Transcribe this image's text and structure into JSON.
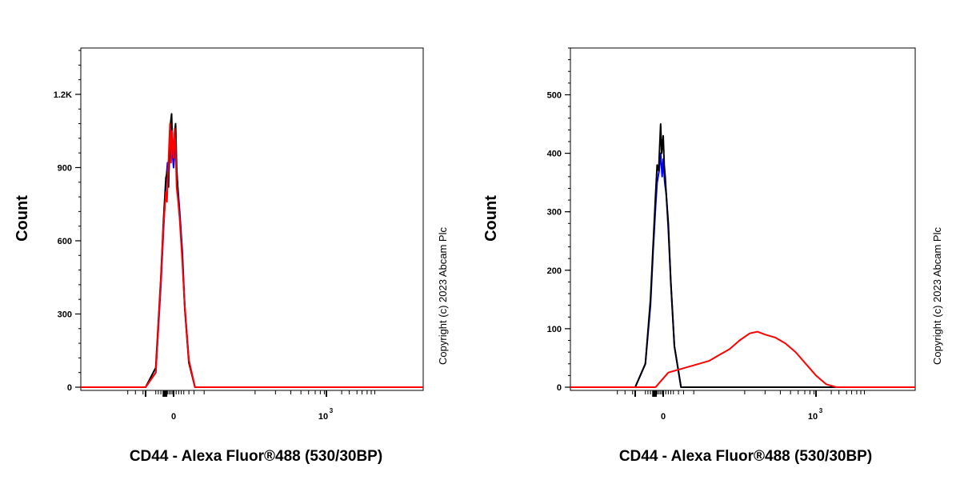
{
  "chart_data": [
    {
      "type": "line",
      "ylabel": "Count",
      "xlabel": "CD44 - Alexa Fluor®488 (530/30BP)",
      "copyright": "Copyright (c) 2023 Abcam Plc",
      "x_tick_labels": [
        "0",
        "10",
        "3"
      ],
      "y_tick_labels": [
        "0",
        "300",
        "600",
        "900",
        "1.2K"
      ],
      "y_ticks": [
        0,
        300,
        600,
        900,
        1200
      ],
      "ylim": [
        0,
        1200
      ],
      "series": [
        {
          "color": "#0000ff",
          "points": [
            [
              -0.55,
              0
            ],
            [
              -0.35,
              60
            ],
            [
              -0.25,
              420
            ],
            [
              -0.2,
              640
            ],
            [
              -0.15,
              840
            ],
            [
              -0.12,
              920
            ],
            [
              -0.1,
              850
            ],
            [
              -0.07,
              1000
            ],
            [
              -0.04,
              1070
            ],
            [
              -0.02,
              950
            ],
            [
              0.0,
              900
            ],
            [
              0.02,
              960
            ],
            [
              0.04,
              1000
            ],
            [
              0.06,
              880
            ],
            [
              0.09,
              800
            ],
            [
              0.12,
              720
            ],
            [
              0.17,
              560
            ],
            [
              0.22,
              330
            ],
            [
              0.3,
              110
            ],
            [
              0.42,
              0
            ]
          ]
        },
        {
          "color": "#000000",
          "points": [
            [
              -0.55,
              0
            ],
            [
              -0.35,
              80
            ],
            [
              -0.25,
              450
            ],
            [
              -0.2,
              680
            ],
            [
              -0.15,
              860
            ],
            [
              -0.12,
              880
            ],
            [
              -0.1,
              820
            ],
            [
              -0.07,
              1060
            ],
            [
              -0.04,
              1120
            ],
            [
              -0.02,
              980
            ],
            [
              0.0,
              960
            ],
            [
              0.02,
              1040
            ],
            [
              0.04,
              1080
            ],
            [
              0.06,
              900
            ],
            [
              0.09,
              780
            ],
            [
              0.12,
              700
            ],
            [
              0.17,
              540
            ],
            [
              0.22,
              320
            ],
            [
              0.3,
              100
            ],
            [
              0.42,
              0
            ]
          ]
        },
        {
          "color": "#ff0000",
          "points": [
            [
              -0.55,
              0
            ],
            [
              -0.35,
              60
            ],
            [
              -0.25,
              440
            ],
            [
              -0.2,
              660
            ],
            [
              -0.15,
              800
            ],
            [
              -0.13,
              760
            ],
            [
              -0.11,
              880
            ],
            [
              -0.07,
              1080
            ],
            [
              -0.05,
              920
            ],
            [
              -0.03,
              1050
            ],
            [
              0.0,
              940
            ],
            [
              0.02,
              1060
            ],
            [
              0.04,
              980
            ],
            [
              0.06,
              820
            ],
            [
              0.09,
              760
            ],
            [
              0.12,
              690
            ],
            [
              0.17,
              520
            ],
            [
              0.22,
              330
            ],
            [
              0.3,
              110
            ],
            [
              0.42,
              0
            ]
          ]
        }
      ]
    },
    {
      "type": "line",
      "ylabel": "Count",
      "xlabel": "CD44 - Alexa Fluor®488 (530/30BP)",
      "copyright": "Copyright (c) 2023 Abcam Plc",
      "x_tick_labels": [
        "0",
        "10",
        "3"
      ],
      "y_tick_labels": [
        "0",
        "100",
        "200",
        "300",
        "400",
        "500"
      ],
      "y_ticks": [
        0,
        100,
        200,
        300,
        400,
        500
      ],
      "ylim": [
        0,
        500
      ],
      "series": [
        {
          "color": "#0000ff",
          "points": [
            [
              -0.55,
              0
            ],
            [
              -0.35,
              40
            ],
            [
              -0.25,
              140
            ],
            [
              -0.2,
              230
            ],
            [
              -0.15,
              310
            ],
            [
              -0.12,
              350
            ],
            [
              -0.08,
              370
            ],
            [
              -0.05,
              400
            ],
            [
              -0.02,
              360
            ],
            [
              0.0,
              390
            ],
            [
              0.03,
              350
            ],
            [
              0.06,
              330
            ],
            [
              0.1,
              270
            ],
            [
              0.15,
              180
            ],
            [
              0.22,
              70
            ],
            [
              0.35,
              0
            ]
          ]
        },
        {
          "color": "#000000",
          "points": [
            [
              -0.55,
              0
            ],
            [
              -0.35,
              40
            ],
            [
              -0.25,
              150
            ],
            [
              -0.2,
              240
            ],
            [
              -0.15,
              330
            ],
            [
              -0.12,
              380
            ],
            [
              -0.09,
              370
            ],
            [
              -0.05,
              450
            ],
            [
              -0.03,
              400
            ],
            [
              0.0,
              430
            ],
            [
              0.02,
              380
            ],
            [
              0.04,
              360
            ],
            [
              0.06,
              330
            ],
            [
              0.1,
              280
            ],
            [
              0.15,
              180
            ],
            [
              0.22,
              70
            ],
            [
              0.35,
              0
            ]
          ]
        },
        {
          "color": "#ff0000",
          "points": [
            [
              -0.15,
              0
            ],
            [
              -0.05,
              10
            ],
            [
              0.1,
              25
            ],
            [
              0.3,
              30
            ],
            [
              0.5,
              35
            ],
            [
              0.7,
              40
            ],
            [
              0.9,
              45
            ],
            [
              1.1,
              55
            ],
            [
              1.3,
              65
            ],
            [
              1.5,
              80
            ],
            [
              1.7,
              92
            ],
            [
              1.85,
              95
            ],
            [
              2.0,
              90
            ],
            [
              2.2,
              85
            ],
            [
              2.4,
              75
            ],
            [
              2.6,
              60
            ],
            [
              2.8,
              40
            ],
            [
              3.0,
              20
            ],
            [
              3.2,
              5
            ],
            [
              3.4,
              0
            ]
          ]
        }
      ]
    }
  ]
}
